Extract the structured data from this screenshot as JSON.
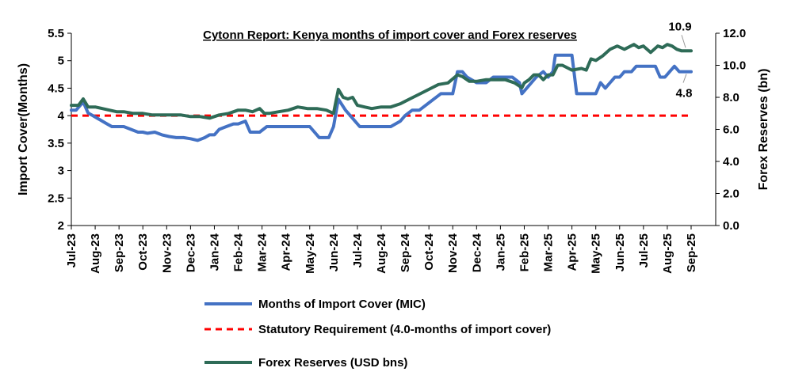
{
  "chart_data": {
    "type": "line",
    "title": "Cytonn Report: Kenya months of import cover and Forex reserves",
    "ylabel_left": "Import Cover(Months)",
    "ylabel_right": "Forex Reserves (bn)",
    "ylim_left": [
      2,
      5.5
    ],
    "ylim_right": [
      0,
      12
    ],
    "yticks_left": [
      "2",
      "2.5",
      "3",
      "3.5",
      "4",
      "4.5",
      "5",
      "5.5"
    ],
    "yticks_right": [
      "0.0",
      "2.0",
      "4.0",
      "6.0",
      "8.0",
      "10.0",
      "12.0"
    ],
    "categories": [
      "Jul-23",
      "Aug-23",
      "Sep-23",
      "Oct-23",
      "Nov-23",
      "Dec-23",
      "Jan-24",
      "Feb-24",
      "Mar-24",
      "Apr-24",
      "May-24",
      "Jun-24",
      "Jul-24",
      "Aug-24",
      "Sep-24",
      "Oct-24",
      "Nov-24",
      "Dec-24",
      "Jan-25",
      "Feb-25",
      "Mar-25",
      "Apr-25",
      "May-25",
      "Jun-25",
      "Jul-25",
      "Aug-25",
      "Sep-25"
    ],
    "grid": false,
    "legend_position": "bottom",
    "series": [
      {
        "name": "Months of Import Cover (MIC)",
        "axis": "left",
        "color": "#4472C4",
        "x": [
          0,
          0.2,
          0.5,
          0.7,
          0.9,
          1.1,
          1.3,
          1.5,
          1.7,
          1.9,
          2.2,
          2.5,
          2.8,
          3.0,
          3.2,
          3.5,
          3.8,
          4.1,
          4.4,
          4.7,
          5.0,
          5.3,
          5.6,
          5.8,
          6.0,
          6.2,
          6.5,
          6.8,
          7.0,
          7.3,
          7.5,
          7.7,
          7.9,
          8.2,
          8.5,
          8.8,
          9.2,
          9.6,
          10.0,
          10.4,
          10.8,
          11.0,
          11.2,
          11.5,
          11.7,
          11.9,
          12.1,
          12.3,
          12.6,
          13.0,
          13.4,
          13.8,
          14.0,
          14.3,
          14.6,
          14.9,
          15.2,
          15.5,
          15.8,
          16.0,
          16.2,
          16.4,
          16.6,
          17.0,
          17.4,
          17.7,
          17.9,
          18.2,
          18.5,
          18.8,
          18.9,
          19.1,
          19.3,
          19.5,
          19.8,
          20.0,
          20.2,
          20.3,
          20.5,
          20.7,
          20.9,
          21.0,
          21.2,
          21.5,
          21.8,
          22.0,
          22.2,
          22.4,
          22.6,
          22.8,
          23.0,
          23.2,
          23.5,
          23.7,
          24.0,
          24.3,
          24.5,
          24.7,
          24.9,
          25.1,
          25.3,
          25.5,
          25.7,
          26.0
        ],
        "values": [
          4.1,
          4.1,
          4.25,
          4.05,
          4.0,
          3.95,
          3.9,
          3.85,
          3.8,
          3.8,
          3.8,
          3.75,
          3.7,
          3.7,
          3.68,
          3.7,
          3.65,
          3.62,
          3.6,
          3.6,
          3.58,
          3.55,
          3.6,
          3.65,
          3.65,
          3.75,
          3.8,
          3.85,
          3.85,
          3.9,
          3.7,
          3.7,
          3.7,
          3.8,
          3.8,
          3.8,
          3.8,
          3.8,
          3.8,
          3.6,
          3.6,
          3.8,
          4.3,
          4.1,
          4.0,
          3.9,
          3.8,
          3.8,
          3.8,
          3.8,
          3.8,
          3.9,
          4.0,
          4.1,
          4.1,
          4.2,
          4.3,
          4.4,
          4.4,
          4.4,
          4.8,
          4.8,
          4.7,
          4.6,
          4.6,
          4.7,
          4.7,
          4.7,
          4.7,
          4.6,
          4.4,
          4.5,
          4.6,
          4.7,
          4.8,
          4.7,
          4.8,
          5.1,
          5.1,
          5.1,
          5.1,
          5.1,
          4.4,
          4.4,
          4.4,
          4.4,
          4.6,
          4.5,
          4.6,
          4.7,
          4.7,
          4.8,
          4.8,
          4.9,
          4.9,
          4.9,
          4.9,
          4.7,
          4.7,
          4.8,
          4.9,
          4.8,
          4.8,
          4.8
        ]
      },
      {
        "name": "Statutory Requirement (4.0-months of import cover)",
        "axis": "left",
        "color": "#FF0000",
        "dashed": true,
        "x": [
          0,
          26
        ],
        "values": [
          4.0,
          4.0
        ]
      },
      {
        "name": "Forex Reserves (USD bns)",
        "axis": "right",
        "color": "#2E6B57",
        "x": [
          0,
          0.3,
          0.5,
          0.7,
          1.0,
          1.3,
          1.6,
          1.9,
          2.2,
          2.6,
          3.0,
          3.4,
          3.8,
          4.2,
          4.6,
          5.0,
          5.4,
          5.8,
          6.0,
          6.2,
          6.6,
          7.0,
          7.3,
          7.6,
          7.9,
          8.1,
          8.3,
          8.7,
          9.1,
          9.5,
          9.9,
          10.3,
          10.7,
          11.0,
          11.2,
          11.4,
          11.6,
          11.8,
          12.0,
          12.3,
          12.6,
          13.0,
          13.4,
          13.8,
          14.2,
          14.6,
          15.0,
          15.4,
          15.8,
          16.2,
          16.4,
          16.7,
          17.0,
          17.4,
          17.8,
          18.2,
          18.6,
          18.9,
          19.0,
          19.2,
          19.4,
          19.6,
          19.8,
          20.0,
          20.2,
          20.4,
          20.6,
          21.0,
          21.4,
          21.6,
          21.8,
          22.0,
          22.3,
          22.6,
          22.9,
          23.2,
          23.6,
          23.8,
          24.0,
          24.3,
          24.6,
          24.8,
          25.0,
          25.2,
          25.4,
          25.6,
          25.8,
          26.0
        ],
        "values": [
          7.5,
          7.5,
          7.9,
          7.4,
          7.4,
          7.3,
          7.2,
          7.1,
          7.1,
          7.0,
          7.0,
          6.9,
          6.9,
          6.9,
          6.9,
          6.8,
          6.8,
          6.7,
          6.8,
          6.9,
          7.0,
          7.2,
          7.2,
          7.1,
          7.3,
          7.0,
          7.0,
          7.1,
          7.2,
          7.4,
          7.3,
          7.3,
          7.2,
          7.0,
          8.5,
          8.0,
          7.9,
          8.0,
          7.5,
          7.4,
          7.3,
          7.4,
          7.4,
          7.6,
          7.9,
          8.2,
          8.5,
          8.8,
          8.9,
          9.4,
          9.3,
          9.0,
          9.0,
          9.1,
          9.1,
          9.1,
          8.9,
          8.6,
          8.9,
          9.1,
          9.4,
          9.4,
          9.1,
          9.4,
          9.4,
          10.0,
          10.0,
          9.7,
          9.8,
          9.7,
          10.4,
          10.3,
          10.6,
          11.0,
          11.2,
          11.0,
          11.3,
          11.1,
          11.2,
          10.8,
          11.2,
          11.1,
          11.3,
          11.2,
          11.0,
          10.9,
          10.9,
          10.9
        ]
      }
    ],
    "annotations": [
      {
        "text": "10.9",
        "series": 2,
        "x": 26,
        "value": 10.9
      },
      {
        "text": "4.8",
        "series": 0,
        "x": 26,
        "value": 4.8
      }
    ]
  }
}
